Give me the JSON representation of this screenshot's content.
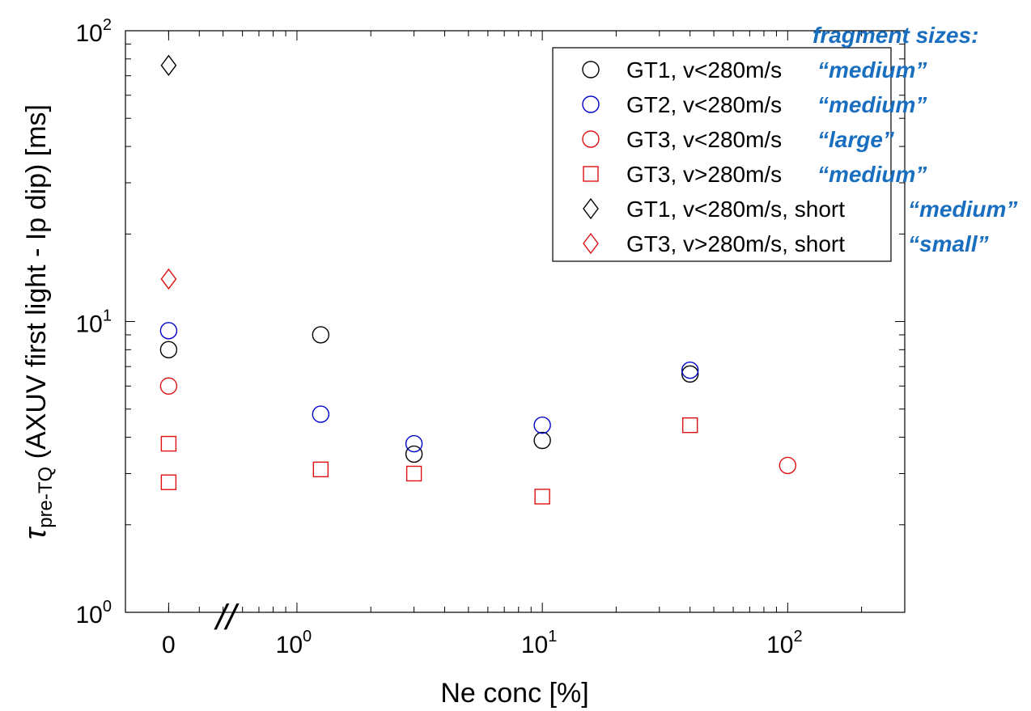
{
  "chart_data": {
    "type": "scatter",
    "title": "",
    "xlabel": "Ne conc [%]",
    "ylabel": {
      "symbol": "τ",
      "subscript": "pre-TQ",
      "text": " (AXUV first light - Ip dip) [ms]"
    },
    "xscale": "log",
    "yscale": "log",
    "xlim": [
      0.2,
      300
    ],
    "ylim": [
      1,
      100
    ],
    "zero_position": 0.3,
    "x_tick_labels": [
      {
        "value": 0,
        "base": "0",
        "exp": ""
      },
      {
        "value": 1,
        "base": "10",
        "exp": "0"
      },
      {
        "value": 10,
        "base": "10",
        "exp": "1"
      },
      {
        "value": 100,
        "base": "10",
        "exp": "2"
      }
    ],
    "y_tick_labels": [
      {
        "value": 1,
        "base": "10",
        "exp": "0"
      },
      {
        "value": 10,
        "base": "10",
        "exp": "1"
      },
      {
        "value": 100,
        "base": "10",
        "exp": "2"
      }
    ],
    "axis_break": "//",
    "fragment_header": "fragment sizes:",
    "legend_position": "top-right",
    "series": [
      {
        "name": "GT1, v<280m/s",
        "marker": "circle",
        "color": "#000000",
        "fragment_size": "“medium”",
        "points": [
          [
            0,
            8.0
          ],
          [
            1.25,
            9.0
          ],
          [
            3,
            3.5
          ],
          [
            10,
            3.9
          ],
          [
            40,
            6.6
          ]
        ]
      },
      {
        "name": "GT2, v<280m/s",
        "marker": "circle",
        "color": "#0000cc",
        "fragment_size": "“medium”",
        "points": [
          [
            0,
            9.3
          ],
          [
            1.25,
            4.8
          ],
          [
            3,
            3.8
          ],
          [
            10,
            4.4
          ],
          [
            40,
            6.8
          ]
        ]
      },
      {
        "name": "GT3, v<280m/s",
        "marker": "circle",
        "color": "#dd1111",
        "fragment_size": "“large”",
        "points": [
          [
            0,
            6.0
          ],
          [
            100,
            3.2
          ]
        ]
      },
      {
        "name": "GT3, v>280m/s",
        "marker": "square",
        "color": "#dd1111",
        "fragment_size": "“medium”",
        "points": [
          [
            0,
            3.8
          ],
          [
            0,
            2.8
          ],
          [
            1.25,
            3.1
          ],
          [
            3,
            3.0
          ],
          [
            10,
            2.5
          ],
          [
            40,
            4.4
          ]
        ]
      },
      {
        "name": "GT1, v<280m/s, short",
        "marker": "diamond",
        "color": "#000000",
        "fragment_size": "“medium”",
        "points": [
          [
            0,
            76
          ]
        ]
      },
      {
        "name": "GT3, v>280m/s, short",
        "marker": "diamond",
        "color": "#dd1111",
        "fragment_size": "“small”",
        "points": [
          [
            0,
            14
          ]
        ]
      }
    ]
  }
}
